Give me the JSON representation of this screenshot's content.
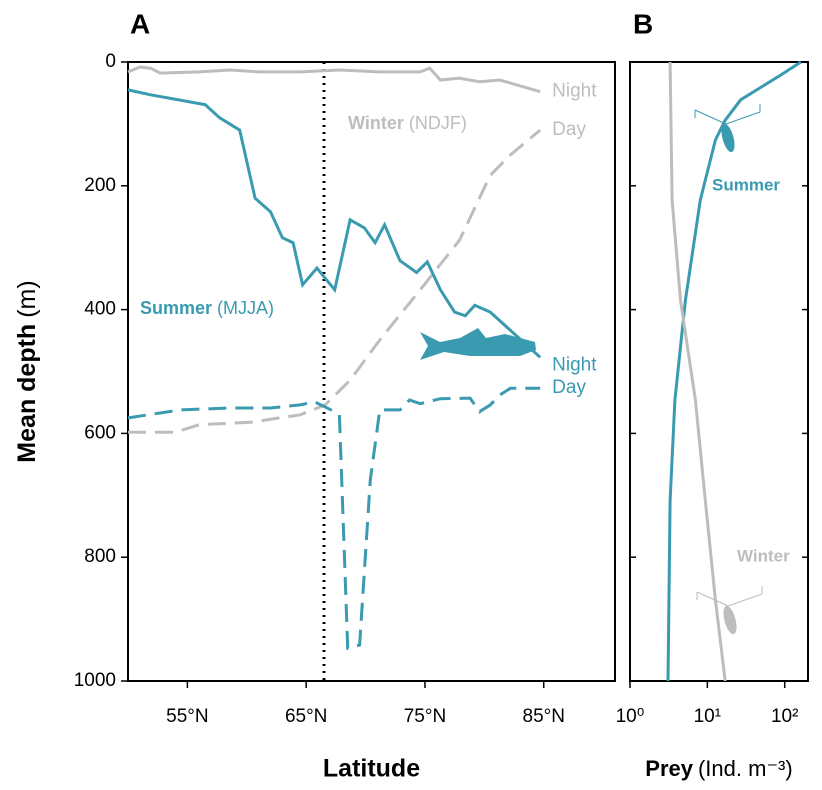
{
  "chart_data": [
    {
      "type": "line",
      "panel": "A",
      "xlabel": "Latitude",
      "ylabel": {
        "bold": "Mean depth",
        "text": "(m)"
      },
      "xlim": [
        50,
        91
      ],
      "ylim": [
        0,
        1000
      ],
      "y_inverted": true,
      "xticks": [
        {
          "value": 55,
          "label": "55°N"
        },
        {
          "value": 65,
          "label": "65°N"
        },
        {
          "value": 75,
          "label": "75°N"
        },
        {
          "value": 85,
          "label": "85°N"
        }
      ],
      "yticks": [
        0,
        200,
        400,
        600,
        800,
        1000
      ],
      "vline": 66.5,
      "series": [
        {
          "name": "Night",
          "season": "Winter",
          "color": "#bdbdbd",
          "dashed": false,
          "x": [
            50,
            51,
            51.9,
            52.7,
            56,
            58.6,
            61.1,
            64.5,
            67.8,
            71.2,
            74.6,
            75.4,
            76.3,
            77.9,
            79.6,
            81.3,
            84.7
          ],
          "values": [
            16,
            8,
            10,
            18,
            16,
            13,
            16,
            16,
            13,
            16,
            16,
            10,
            29,
            26,
            32,
            29,
            48
          ]
        },
        {
          "name": "Day",
          "season": "Winter",
          "color": "#bdbdbd",
          "dashed": true,
          "x": [
            50,
            54,
            56,
            60.3,
            64.5,
            66.6,
            68.7,
            71.2,
            74.6,
            77.9,
            80.5,
            82.2,
            84.7
          ],
          "values": [
            598,
            598,
            586,
            582,
            570,
            554,
            514,
            449,
            368,
            288,
            183,
            150,
            110
          ]
        },
        {
          "name": "Night",
          "season": "Summer",
          "color": "#3a9bb0",
          "dashed": false,
          "x": [
            50,
            51.9,
            56.5,
            57.7,
            59.4,
            60.7,
            62,
            63,
            63.9,
            64.7,
            65.9,
            67.4,
            68.7,
            69.9,
            70.8,
            71.6,
            72.9,
            74.3,
            75.2,
            76.3,
            77.5,
            78.4,
            79.2,
            80.5,
            84.7
          ],
          "values": [
            45,
            53,
            69,
            90,
            110,
            220,
            242,
            284,
            292,
            360,
            333,
            368,
            255,
            268,
            292,
            263,
            321,
            340,
            323,
            368,
            404,
            410,
            393,
            404,
            477
          ]
        },
        {
          "name": "Day",
          "season": "Summer",
          "color": "#3a9bb0",
          "dashed": true,
          "x": [
            50,
            54.4,
            58.6,
            62,
            64.5,
            65.7,
            67.4,
            67.8,
            68.5,
            69.5,
            70.4,
            71.2,
            72.9,
            73.7,
            74.6,
            76.3,
            78.8,
            79.6,
            80.5,
            81.3,
            82.2,
            84.7
          ],
          "values": [
            575,
            562,
            559,
            559,
            554,
            549,
            565,
            570,
            947,
            942,
            675,
            562,
            562,
            546,
            552,
            544,
            543,
            565,
            554,
            538,
            527,
            527
          ]
        }
      ],
      "annotations": [
        {
          "bold": "Winter",
          "text": "(NDJF)",
          "color": "#bdbdbd"
        },
        {
          "bold": "Summer",
          "text": "(MJJA)",
          "color": "#3a9bb0"
        }
      ]
    },
    {
      "type": "line",
      "panel": "B",
      "xlabel": {
        "bold": "Prey",
        "text": "(Ind. m⁻³)"
      },
      "xlim": [
        1,
        200
      ],
      "xscale": "log",
      "ylim": [
        0,
        1000
      ],
      "y_inverted": true,
      "xticks": [
        {
          "value": 1,
          "label": "10⁰"
        },
        {
          "value": 10,
          "label": "10¹"
        },
        {
          "value": 100,
          "label": "10²"
        }
      ],
      "yticks": [
        0,
        200,
        400,
        600,
        800,
        1000
      ],
      "series": [
        {
          "name": "Summer",
          "color": "#3a9bb0",
          "x": [
            162,
            89,
            27,
            17,
            12.7,
            8.1,
            5.2,
            3.8,
            3.3,
            3.1
          ],
          "values": [
            0,
            21,
            61,
            94,
            126,
            223,
            385,
            546,
            708,
            1000
          ]
        },
        {
          "name": "Winter",
          "color": "#bdbdbd",
          "x": [
            3.3,
            3.5,
            4.5,
            7,
            9.4,
            12.7,
            17
          ],
          "values": [
            0,
            223,
            385,
            546,
            708,
            869,
            1000
          ]
        }
      ]
    }
  ]
}
